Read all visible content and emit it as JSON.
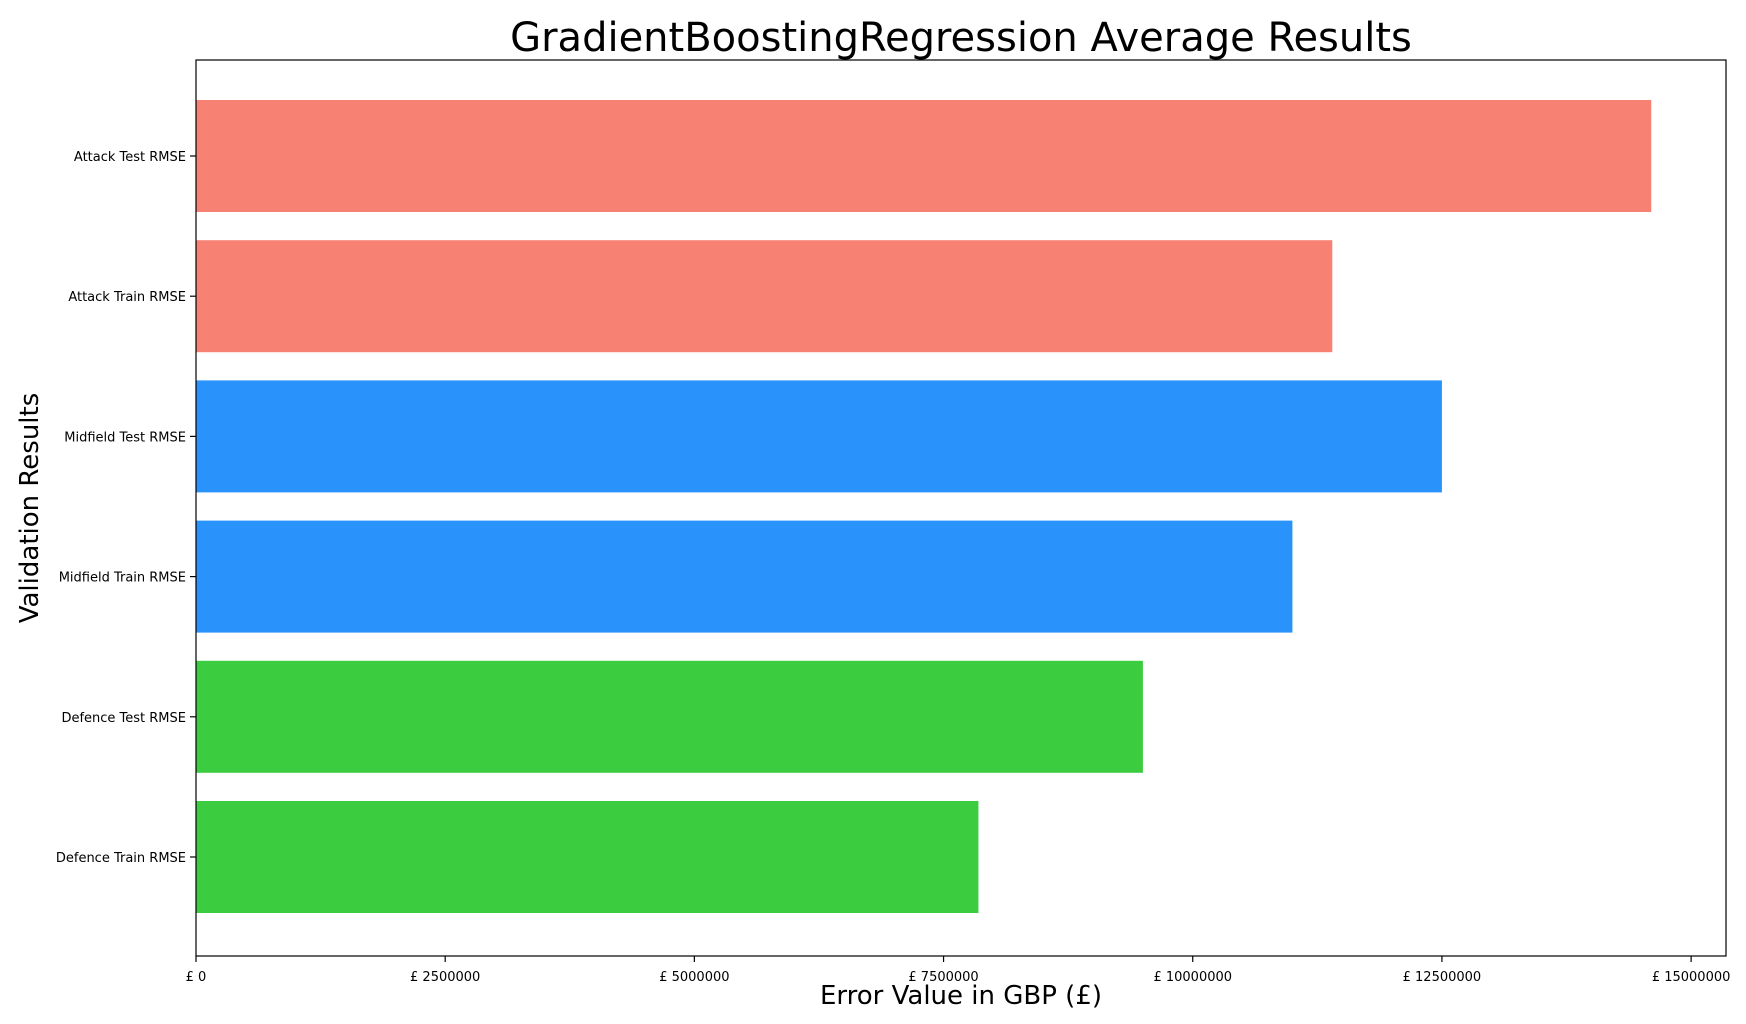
{
  "chart_data": {
    "type": "bar",
    "orientation": "horizontal",
    "title": "GradientBoostingRegression Average Results",
    "xlabel": "Error Value in GBP (£)",
    "ylabel": "Validation Results",
    "categories": [
      "Attack Test RMSE",
      "Attack Train RMSE",
      "Midfield Test RMSE",
      "Midfield Train RMSE",
      "Defence Test RMSE",
      "Defence Train RMSE"
    ],
    "values": [
      14600000,
      11400000,
      12500000,
      11000000,
      9500000,
      7850000
    ],
    "bar_colors": [
      "#f78274",
      "#f78274",
      "#2993fb",
      "#2993fb",
      "#3ccc40",
      "#3ccc40"
    ],
    "xlim": [
      0,
      15350000
    ],
    "xticks": [
      0,
      2500000,
      5000000,
      7500000,
      10000000,
      12500000,
      15000000
    ],
    "xtick_labels": [
      "£ 0",
      "£ 2500000",
      "£ 5000000",
      "£ 7500000",
      "£ 10000000",
      "£ 12500000",
      "£ 15000000"
    ],
    "grid": false,
    "legend": "none"
  }
}
